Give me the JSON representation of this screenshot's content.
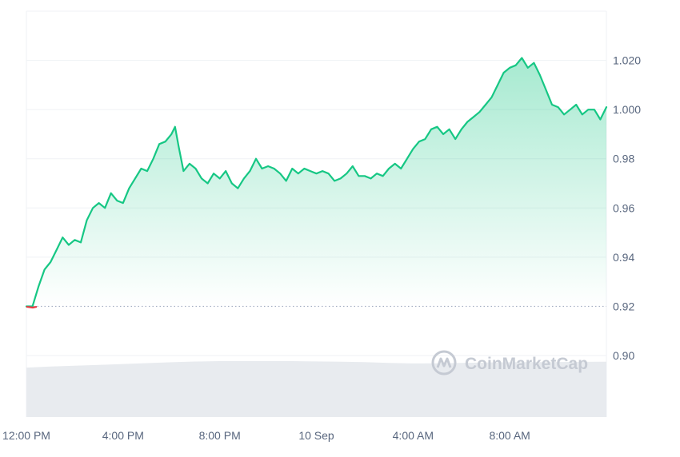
{
  "watermark": {
    "text": "CoinMarketCap",
    "icon": "coinmarketcap-logo-icon"
  },
  "colors": {
    "line": "#16c784",
    "line_below_baseline": "#ea3943",
    "area_fill_top": "#16c784",
    "baseline": "#a6b0c3",
    "grid": "#eff2f5",
    "volume": "#e8ebef",
    "axis_text": "#58667e"
  },
  "chart_data": {
    "type": "area",
    "grid": true,
    "ylim": [
      0.875,
      1.04
    ],
    "y_ticks": [
      0.9,
      0.92,
      0.94,
      0.96,
      0.98,
      1.0,
      1.02
    ],
    "y_tick_labels": [
      "0.90",
      "0.92",
      "0.94",
      "0.96",
      "0.98",
      "1.000",
      "1.020"
    ],
    "x_ticks": [
      {
        "x": 0,
        "label": "12:00 PM"
      },
      {
        "x": 4,
        "label": "4:00 PM"
      },
      {
        "x": 8,
        "label": "8:00 PM"
      },
      {
        "x": 12,
        "label": "10 Sep"
      },
      {
        "x": 16,
        "label": "4:00 AM"
      },
      {
        "x": 20,
        "label": "8:00 AM"
      }
    ],
    "xlim": [
      0,
      24
    ],
    "baseline": 0.92,
    "series": [
      {
        "values": [
          [
            0.0,
            0.92
          ],
          [
            0.25,
            0.92
          ],
          [
            0.5,
            0.928
          ],
          [
            0.75,
            0.935
          ],
          [
            1.0,
            0.938
          ],
          [
            1.25,
            0.943
          ],
          [
            1.5,
            0.948
          ],
          [
            1.75,
            0.945
          ],
          [
            2.0,
            0.947
          ],
          [
            2.25,
            0.946
          ],
          [
            2.5,
            0.955
          ],
          [
            2.75,
            0.96
          ],
          [
            3.0,
            0.962
          ],
          [
            3.25,
            0.96
          ],
          [
            3.5,
            0.966
          ],
          [
            3.75,
            0.963
          ],
          [
            4.0,
            0.962
          ],
          [
            4.25,
            0.968
          ],
          [
            4.5,
            0.972
          ],
          [
            4.75,
            0.976
          ],
          [
            5.0,
            0.975
          ],
          [
            5.25,
            0.98
          ],
          [
            5.5,
            0.986
          ],
          [
            5.75,
            0.987
          ],
          [
            6.0,
            0.99
          ],
          [
            6.15,
            0.993
          ],
          [
            6.3,
            0.985
          ],
          [
            6.5,
            0.975
          ],
          [
            6.75,
            0.978
          ],
          [
            7.0,
            0.976
          ],
          [
            7.25,
            0.972
          ],
          [
            7.5,
            0.97
          ],
          [
            7.75,
            0.974
          ],
          [
            8.0,
            0.972
          ],
          [
            8.25,
            0.975
          ],
          [
            8.5,
            0.97
          ],
          [
            8.75,
            0.968
          ],
          [
            9.0,
            0.972
          ],
          [
            9.25,
            0.975
          ],
          [
            9.5,
            0.98
          ],
          [
            9.75,
            0.976
          ],
          [
            10.0,
            0.977
          ],
          [
            10.25,
            0.976
          ],
          [
            10.5,
            0.974
          ],
          [
            10.75,
            0.971
          ],
          [
            11.0,
            0.976
          ],
          [
            11.25,
            0.974
          ],
          [
            11.5,
            0.976
          ],
          [
            11.75,
            0.975
          ],
          [
            12.0,
            0.974
          ],
          [
            12.25,
            0.975
          ],
          [
            12.5,
            0.974
          ],
          [
            12.75,
            0.971
          ],
          [
            13.0,
            0.972
          ],
          [
            13.25,
            0.974
          ],
          [
            13.5,
            0.977
          ],
          [
            13.75,
            0.973
          ],
          [
            14.0,
            0.973
          ],
          [
            14.25,
            0.972
          ],
          [
            14.5,
            0.974
          ],
          [
            14.75,
            0.973
          ],
          [
            15.0,
            0.976
          ],
          [
            15.25,
            0.978
          ],
          [
            15.5,
            0.976
          ],
          [
            15.75,
            0.98
          ],
          [
            16.0,
            0.984
          ],
          [
            16.25,
            0.987
          ],
          [
            16.5,
            0.988
          ],
          [
            16.75,
            0.992
          ],
          [
            17.0,
            0.993
          ],
          [
            17.25,
            0.99
          ],
          [
            17.5,
            0.992
          ],
          [
            17.75,
            0.988
          ],
          [
            18.0,
            0.992
          ],
          [
            18.25,
            0.995
          ],
          [
            18.5,
            0.997
          ],
          [
            18.75,
            0.999
          ],
          [
            19.0,
            1.002
          ],
          [
            19.25,
            1.005
          ],
          [
            19.5,
            1.01
          ],
          [
            19.75,
            1.015
          ],
          [
            20.0,
            1.017
          ],
          [
            20.25,
            1.018
          ],
          [
            20.5,
            1.021
          ],
          [
            20.75,
            1.017
          ],
          [
            21.0,
            1.019
          ],
          [
            21.25,
            1.014
          ],
          [
            21.5,
            1.008
          ],
          [
            21.75,
            1.002
          ],
          [
            22.0,
            1.001
          ],
          [
            22.25,
            0.998
          ],
          [
            22.5,
            1.0
          ],
          [
            22.75,
            1.002
          ],
          [
            23.0,
            0.998
          ],
          [
            23.25,
            1.0
          ],
          [
            23.5,
            1.0
          ],
          [
            23.75,
            0.996
          ],
          [
            24.0,
            1.001
          ]
        ]
      }
    ],
    "volume": [
      0.55,
      0.62,
      0.68,
      0.74,
      0.8,
      0.86,
      0.92,
      0.97,
      1.0,
      1.0,
      1.0,
      1.0,
      0.98,
      0.96,
      0.93,
      0.88,
      0.84,
      0.85,
      0.88,
      0.9,
      0.92,
      0.93,
      0.94,
      0.95,
      0.96
    ]
  }
}
